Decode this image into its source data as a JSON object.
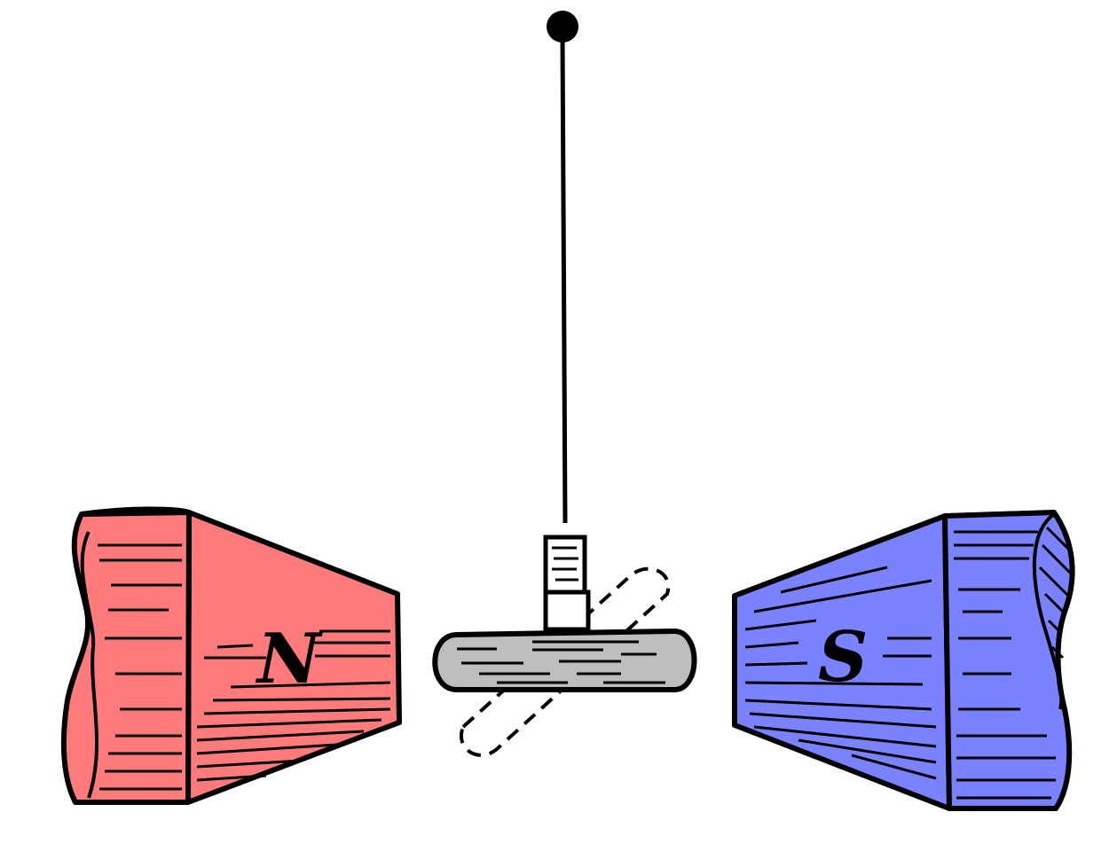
{
  "diagram": {
    "north_pole": {
      "label": "N",
      "color": "#FF7B7B"
    },
    "south_pole": {
      "label": "S",
      "color": "#7B82FF"
    },
    "bar": {
      "color": "#BDBDBD"
    },
    "line_color": "#000000"
  }
}
